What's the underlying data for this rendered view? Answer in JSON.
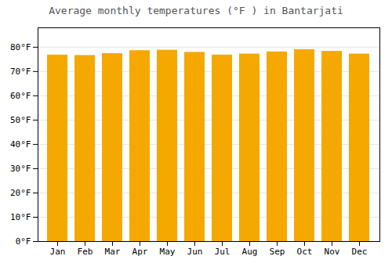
{
  "chart_data": {
    "type": "bar",
    "title": "Average monthly temperatures (°F ) in Bantarjati",
    "categories": [
      "Jan",
      "Feb",
      "Mar",
      "Apr",
      "May",
      "Jun",
      "Jul",
      "Aug",
      "Sep",
      "Oct",
      "Nov",
      "Dec"
    ],
    "values": [
      76.8,
      76.6,
      77.4,
      78.6,
      78.8,
      77.9,
      76.8,
      77.2,
      78.1,
      79.0,
      78.3,
      77.2
    ],
    "color": "#F5A800",
    "ylim": [
      0,
      88
    ],
    "yticks": [
      {
        "value": 0,
        "label": "0°F"
      },
      {
        "value": 10,
        "label": "10°F"
      },
      {
        "value": 20,
        "label": "20°F"
      },
      {
        "value": 30,
        "label": "30°F"
      },
      {
        "value": 40,
        "label": "40°F"
      },
      {
        "value": 50,
        "label": "50°F"
      },
      {
        "value": 60,
        "label": "60°F"
      },
      {
        "value": 70,
        "label": "70°F"
      },
      {
        "value": 80,
        "label": "80°F"
      }
    ],
    "grid": true
  }
}
